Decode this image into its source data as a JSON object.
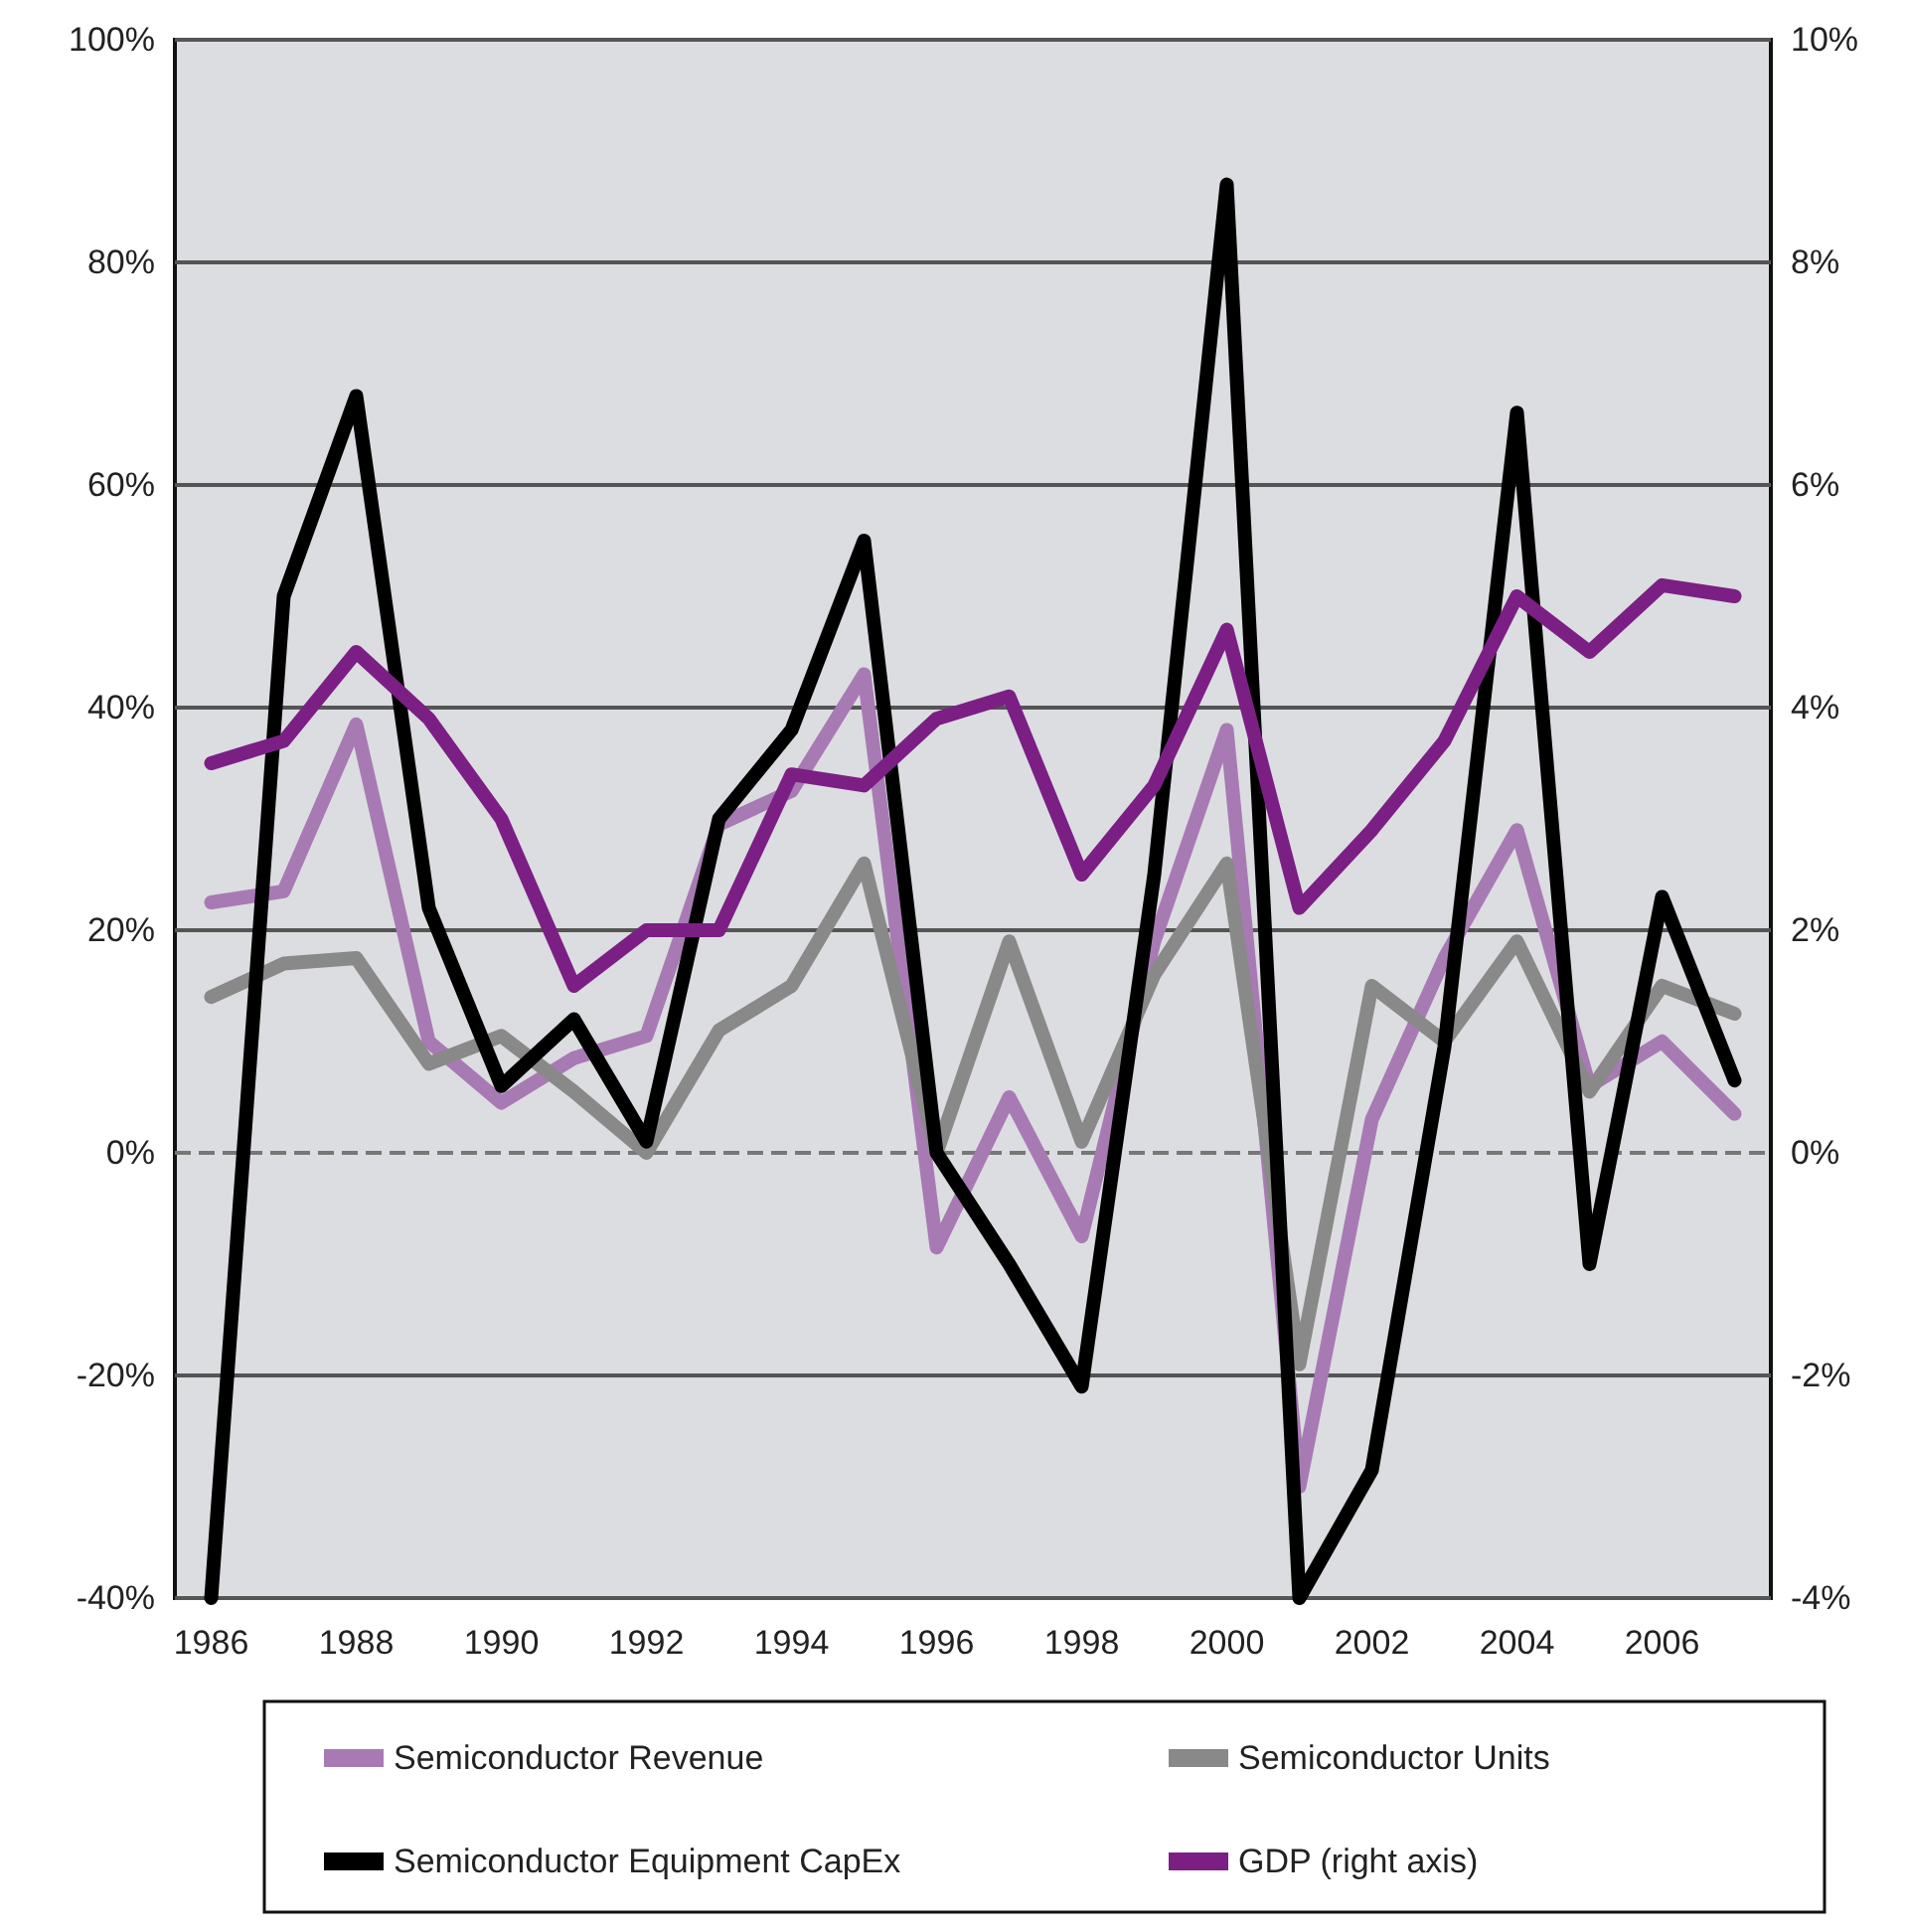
{
  "chart_data": {
    "type": "line",
    "categories": [
      "1986",
      null,
      "1988",
      null,
      "1990",
      null,
      "1992",
      null,
      "1994",
      null,
      "1996",
      null,
      "1998",
      null,
      "2000",
      null,
      "2002",
      null,
      "2004",
      null,
      "2006",
      null
    ],
    "series": [
      {
        "name": "Semiconductor Revenue",
        "color": "#a87ab4",
        "values": [
          22.5,
          23.5,
          38.5,
          10,
          4.5,
          8.5,
          10.5,
          29.5,
          32.5,
          43,
          -8.5,
          5,
          -7.5,
          19,
          38,
          -30,
          3,
          17.5,
          29,
          6,
          10,
          3.5
        ]
      },
      {
        "name": "Semiconductor Units",
        "color": "#898989",
        "values": [
          14,
          17,
          17.5,
          8,
          10.5,
          5.5,
          0,
          11,
          15,
          26,
          0,
          19,
          1,
          16,
          26,
          -19,
          15,
          10,
          19,
          5.5,
          15,
          12.5
        ]
      },
      {
        "name": "Semiconductor Equipment CapEx",
        "color": "#000000",
        "values": [
          -40,
          50,
          68,
          22,
          6,
          12,
          1,
          30,
          38,
          55,
          0,
          -10,
          -21,
          25,
          87,
          -40,
          -28.5,
          9.5,
          66.5,
          -10,
          23,
          6.5
        ]
      },
      {
        "name": "GDP (right axis)",
        "color": "#7b1f85",
        "axis": "y2",
        "values": [
          3.5,
          3.7,
          4.5,
          3.9,
          3.0,
          1.5,
          2.0,
          2.0,
          3.4,
          3.3,
          3.9,
          4.1,
          2.5,
          3.3,
          4.7,
          2.2,
          2.9,
          3.7,
          5.0,
          4.5,
          5.1,
          5.0
        ]
      }
    ],
    "ylim": [
      -40,
      100
    ],
    "yticks": [
      {
        "value": -40,
        "label": "-40%"
      },
      {
        "value": -20,
        "label": "-20%"
      },
      {
        "value": 0,
        "label": "0%"
      },
      {
        "value": 20,
        "label": "20%"
      },
      {
        "value": 40,
        "label": "40%"
      },
      {
        "value": 60,
        "label": "60%"
      },
      {
        "value": 80,
        "label": "80%"
      },
      {
        "value": 100,
        "label": "100%"
      }
    ],
    "y2lim": [
      -4,
      10
    ],
    "y2ticks": [
      {
        "value": -4,
        "label": "-4%"
      },
      {
        "value": -2,
        "label": "-2%"
      },
      {
        "value": 0,
        "label": "0%"
      },
      {
        "value": 2,
        "label": "2%"
      },
      {
        "value": 4,
        "label": "4%"
      },
      {
        "value": 6,
        "label": "6%"
      },
      {
        "value": 8,
        "label": "8%"
      },
      {
        "value": 10,
        "label": "10%"
      }
    ],
    "ref_lines": [
      {
        "axis": "y",
        "value": 0,
        "color": "#777777",
        "line_style": "dashed"
      }
    ],
    "grid": "y",
    "legend": "bottom",
    "marker": "none",
    "line_style": "solid"
  }
}
